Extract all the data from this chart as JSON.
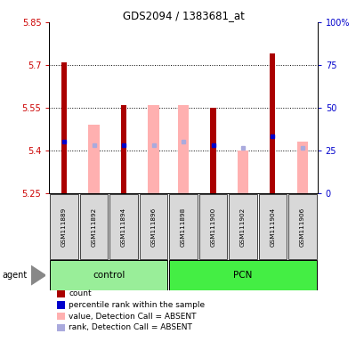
{
  "title": "GDS2094 / 1383681_at",
  "samples": [
    "GSM111889",
    "GSM111892",
    "GSM111894",
    "GSM111896",
    "GSM111898",
    "GSM111900",
    "GSM111902",
    "GSM111904",
    "GSM111906"
  ],
  "groups": {
    "control": [
      0,
      1,
      2,
      3
    ],
    "PCN": [
      4,
      5,
      6,
      7,
      8
    ]
  },
  "ylim_left": [
    5.25,
    5.85
  ],
  "ylim_right": [
    0,
    100
  ],
  "yticks_left": [
    5.25,
    5.4,
    5.55,
    5.7,
    5.85
  ],
  "yticks_right": [
    0,
    25,
    50,
    75,
    100
  ],
  "ytick_labels_left": [
    "5.25",
    "5.4",
    "5.55",
    "5.7",
    "5.85"
  ],
  "ytick_labels_right": [
    "0",
    "25",
    "50",
    "75",
    "100%"
  ],
  "dotted_lines": [
    5.4,
    5.55,
    5.7
  ],
  "red_bar_top": [
    5.71,
    5.25,
    5.56,
    5.25,
    5.25,
    5.55,
    5.25,
    5.74,
    5.25
  ],
  "pink_bar_top": [
    5.25,
    5.49,
    5.25,
    5.56,
    5.56,
    5.25,
    5.4,
    5.25,
    5.43
  ],
  "blue_square_y": [
    5.43,
    5.25,
    5.42,
    5.25,
    5.25,
    5.42,
    5.25,
    5.45,
    5.25
  ],
  "lightblue_square_y": [
    5.25,
    5.42,
    5.25,
    5.42,
    5.43,
    5.25,
    5.41,
    5.25,
    5.41
  ],
  "bar_bottom": 5.25,
  "red_color": "#AA0000",
  "pink_color": "#FFB0B0",
  "blue_color": "#0000CC",
  "lightblue_color": "#AAAADD",
  "group_color_control": "#99EE99",
  "group_color_pcn": "#44EE44",
  "label_color_left": "#CC0000",
  "label_color_right": "#0000CC",
  "bg_color": "#FFFFFF"
}
